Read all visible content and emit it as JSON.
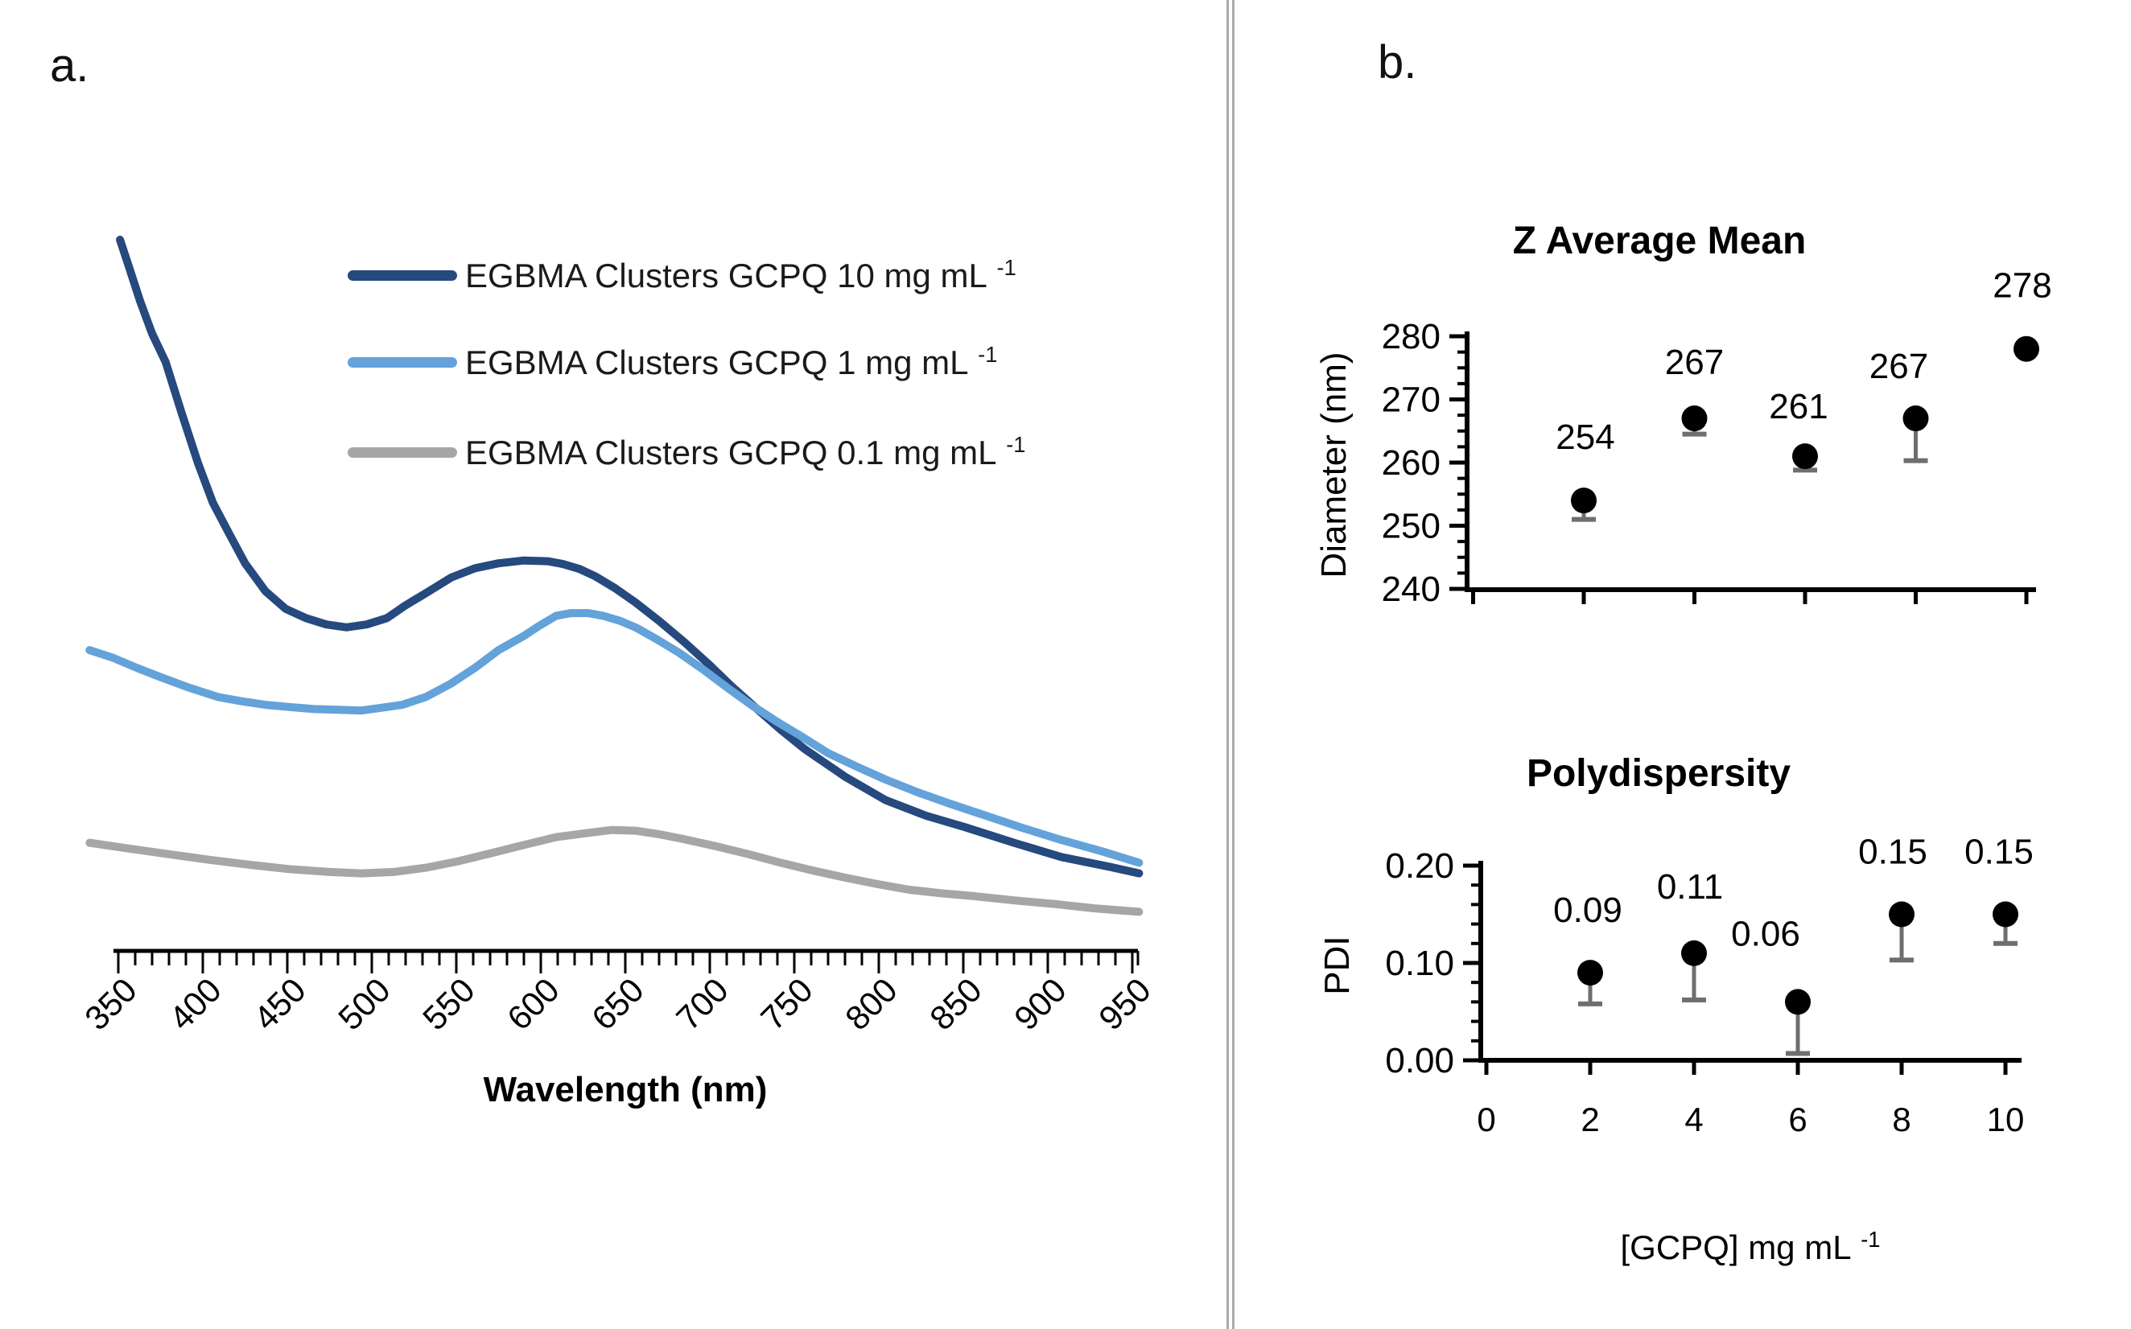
{
  "figure": {
    "panel_a_label": "a.",
    "panel_b_label": "b.",
    "colors": {
      "navy": "#26497E",
      "light_blue": "#64A2DA",
      "gray": "#A6A6A6",
      "error_bar": "#6E6E6E",
      "axis": "#000000",
      "divider": "#ABABAB"
    }
  },
  "chart_data": [
    {
      "id": "absorbance_spectra",
      "type": "line",
      "xlabel": "Wavelength (nm)",
      "ylabel": "",
      "x_ticks": [
        350,
        400,
        450,
        500,
        550,
        600,
        650,
        700,
        750,
        800,
        850,
        900,
        950
      ],
      "x_minor_step": 10,
      "xlim": [
        345,
        957
      ],
      "y_axis_shown": false,
      "legend_position": "upper-right-inside",
      "series": [
        {
          "name": "EGBMA Clusters GCPQ 10 mg mL⁻¹",
          "color": "#26497E",
          "points": [
            [
              351,
              1.0
            ],
            [
              356,
              0.964
            ],
            [
              363,
              0.913
            ],
            [
              370,
              0.868
            ],
            [
              378,
              0.828
            ],
            [
              387,
              0.76
            ],
            [
              397,
              0.687
            ],
            [
              406,
              0.63
            ],
            [
              416,
              0.585
            ],
            [
              425,
              0.545
            ],
            [
              437,
              0.506
            ],
            [
              449,
              0.481
            ],
            [
              461,
              0.468
            ],
            [
              473,
              0.459
            ],
            [
              485,
              0.455
            ],
            [
              497,
              0.459
            ],
            [
              509,
              0.468
            ],
            [
              520,
              0.486
            ],
            [
              532,
              0.503
            ],
            [
              547,
              0.525
            ],
            [
              561,
              0.538
            ],
            [
              575,
              0.545
            ],
            [
              590,
              0.549
            ],
            [
              604,
              0.548
            ],
            [
              613,
              0.544
            ],
            [
              623,
              0.537
            ],
            [
              632,
              0.527
            ],
            [
              644,
              0.51
            ],
            [
              656,
              0.49
            ],
            [
              670,
              0.464
            ],
            [
              685,
              0.434
            ],
            [
              699,
              0.404
            ],
            [
              713,
              0.372
            ],
            [
              728,
              0.34
            ],
            [
              742,
              0.311
            ],
            [
              756,
              0.284
            ],
            [
              780,
              0.245
            ],
            [
              804,
              0.212
            ],
            [
              828,
              0.19
            ],
            [
              851,
              0.174
            ],
            [
              880,
              0.152
            ],
            [
              908,
              0.132
            ],
            [
              937,
              0.118
            ],
            [
              954,
              0.109
            ]
          ]
        },
        {
          "name": "EGBMA Clusters GCPQ 1 mg mL⁻¹",
          "color": "#64A2DA",
          "points": [
            [
              333,
              0.423
            ],
            [
              347,
              0.412
            ],
            [
              361,
              0.398
            ],
            [
              375,
              0.385
            ],
            [
              392,
              0.37
            ],
            [
              409,
              0.357
            ],
            [
              423,
              0.351
            ],
            [
              437,
              0.346
            ],
            [
              451,
              0.343
            ],
            [
              466,
              0.34
            ],
            [
              480,
              0.339
            ],
            [
              494,
              0.338
            ],
            [
              509,
              0.343
            ],
            [
              518,
              0.346
            ],
            [
              532,
              0.357
            ],
            [
              547,
              0.376
            ],
            [
              561,
              0.398
            ],
            [
              575,
              0.423
            ],
            [
              590,
              0.443
            ],
            [
              599,
              0.457
            ],
            [
              609,
              0.471
            ],
            [
              618,
              0.475
            ],
            [
              628,
              0.475
            ],
            [
              637,
              0.471
            ],
            [
              647,
              0.464
            ],
            [
              656,
              0.455
            ],
            [
              668,
              0.439
            ],
            [
              682,
              0.419
            ],
            [
              697,
              0.394
            ],
            [
              711,
              0.369
            ],
            [
              725,
              0.345
            ],
            [
              740,
              0.322
            ],
            [
              754,
              0.302
            ],
            [
              770,
              0.278
            ],
            [
              787,
              0.259
            ],
            [
              804,
              0.241
            ],
            [
              823,
              0.223
            ],
            [
              842,
              0.207
            ],
            [
              861,
              0.192
            ],
            [
              885,
              0.173
            ],
            [
              908,
              0.156
            ],
            [
              932,
              0.14
            ],
            [
              954,
              0.124
            ]
          ]
        },
        {
          "name": "EGBMA Clusters GCPQ 0.1 mg mL⁻¹",
          "color": "#A6A6A6",
          "points": [
            [
              333,
              0.152
            ],
            [
              356,
              0.144
            ],
            [
              380,
              0.136
            ],
            [
              404,
              0.128
            ],
            [
              428,
              0.121
            ],
            [
              451,
              0.115
            ],
            [
              475,
              0.111
            ],
            [
              494,
              0.109
            ],
            [
              513,
              0.111
            ],
            [
              532,
              0.117
            ],
            [
              551,
              0.126
            ],
            [
              570,
              0.137
            ],
            [
              590,
              0.149
            ],
            [
              609,
              0.16
            ],
            [
              628,
              0.166
            ],
            [
              642,
              0.17
            ],
            [
              656,
              0.169
            ],
            [
              670,
              0.164
            ],
            [
              685,
              0.157
            ],
            [
              704,
              0.147
            ],
            [
              723,
              0.136
            ],
            [
              742,
              0.124
            ],
            [
              761,
              0.113
            ],
            [
              780,
              0.103
            ],
            [
              799,
              0.094
            ],
            [
              818,
              0.086
            ],
            [
              837,
              0.081
            ],
            [
              856,
              0.077
            ],
            [
              880,
              0.071
            ],
            [
              904,
              0.066
            ],
            [
              927,
              0.06
            ],
            [
              954,
              0.055
            ]
          ]
        }
      ]
    },
    {
      "id": "z_average_mean",
      "type": "scatter",
      "title": "Z Average Mean",
      "ylabel": "Diameter (nm)",
      "ylim": [
        240,
        280
      ],
      "y_ticks": [
        "240",
        "250",
        "260",
        "270",
        "280"
      ],
      "y_minor_step": 2.5,
      "x": [
        2,
        4,
        6,
        8,
        10
      ],
      "values": [
        254,
        267,
        261,
        267,
        278
      ],
      "data_labels": [
        "254",
        "267",
        "261",
        "267",
        "278"
      ],
      "error_minus_to": [
        251,
        264.5,
        258.8,
        260.3,
        null
      ],
      "x_tick_values": [
        0,
        2,
        4,
        6,
        8,
        10
      ],
      "x_tick_labels_shown": false,
      "marker": "filled-circle"
    },
    {
      "id": "polydispersity",
      "type": "scatter",
      "title": "Polydispersity",
      "ylabel": "PDI",
      "xlabel": "[GCPQ] mg mL⁻¹",
      "ylim": [
        0,
        0.2
      ],
      "y_ticks": [
        "0.00",
        "0.10",
        "0.20"
      ],
      "y_minor_step": 0.02,
      "x": [
        2,
        4,
        6,
        8,
        10
      ],
      "values": [
        0.09,
        0.11,
        0.06,
        0.15,
        0.15
      ],
      "data_labels": [
        "0.09",
        "0.11",
        "0.06",
        "0.15",
        "0.15"
      ],
      "error_minus_to": [
        0.058,
        0.062,
        0.007,
        0.103,
        0.12
      ],
      "x_tick_values": [
        0,
        2,
        4,
        6,
        8,
        10
      ],
      "x_tick_labels": [
        "0",
        "2",
        "4",
        "6",
        "8",
        "10"
      ],
      "marker": "filled-circle"
    }
  ]
}
